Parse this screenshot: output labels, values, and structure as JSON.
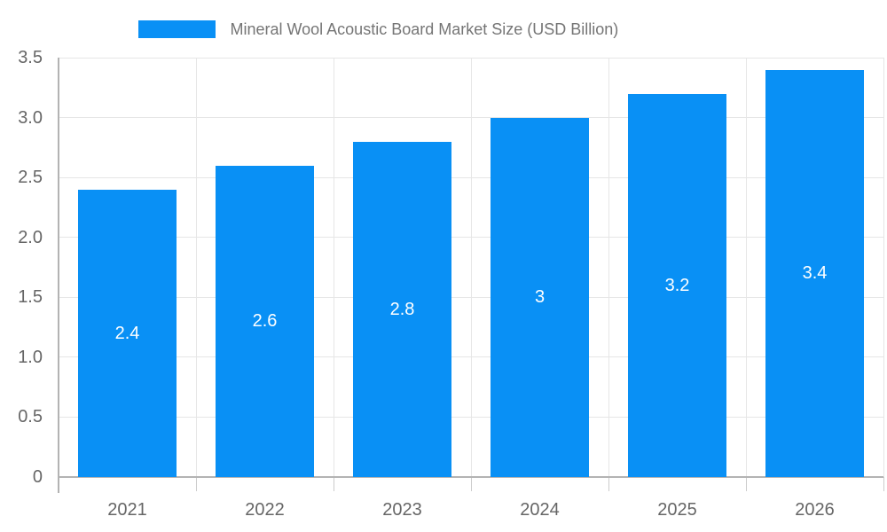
{
  "legend": {
    "label": "Mineral Wool Acoustic Board Market Size (USD Billion)"
  },
  "colors": {
    "bar": "#0990f5",
    "grid": "#e6e6e6",
    "axis": "#b3b3b3",
    "tick": "#cccccc",
    "y_label": "#666666",
    "x_label": "#666666",
    "title": "#757575",
    "value_label": "#ffffff",
    "background": "#ffffff"
  },
  "chart_data": {
    "type": "bar",
    "title": "Mineral Wool Acoustic Board Market Size (USD Billion)",
    "categories": [
      "2021",
      "2022",
      "2023",
      "2024",
      "2025",
      "2026"
    ],
    "values": [
      2.4,
      2.6,
      2.8,
      3,
      3.2,
      3.4
    ],
    "value_labels": [
      "2.4",
      "2.6",
      "2.8",
      "3",
      "3.2",
      "3.4"
    ],
    "xlabel": "",
    "ylabel": "",
    "ylim": [
      0,
      3.5
    ],
    "ytick_interval": 0.5,
    "ytick_labels": [
      "0",
      "0.5",
      "1.0",
      "1.5",
      "2.0",
      "2.5",
      "3.0",
      "3.5"
    ],
    "grid": true,
    "legend_position": "top"
  }
}
